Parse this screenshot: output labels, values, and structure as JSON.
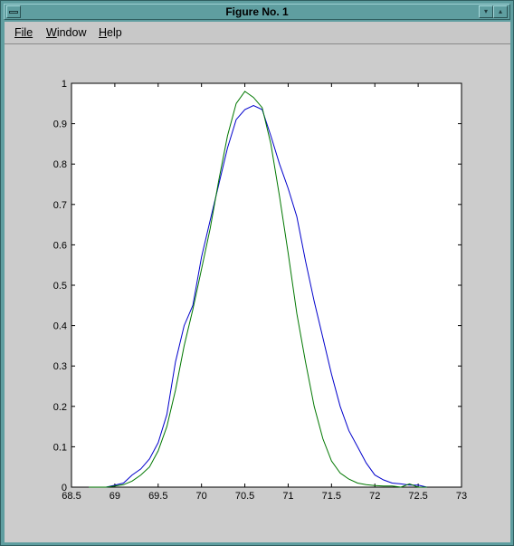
{
  "window": {
    "title": "Figure No. 1",
    "buttons": {
      "system": "system-menu",
      "minimize": "▾",
      "maximize": "▴"
    }
  },
  "menu": {
    "file_label": "File",
    "window_label": "Window",
    "help_label": "Help"
  },
  "colors": {
    "series_blue": "#0000cc",
    "series_green": "#007700",
    "background": "#cccccc",
    "titlebar": "#5f9ea0"
  },
  "chart_data": {
    "type": "line",
    "title": "",
    "xlabel": "",
    "ylabel": "",
    "xlim": [
      68.5,
      73
    ],
    "ylim": [
      0,
      1
    ],
    "x_ticks": [
      68.5,
      69,
      69.5,
      70,
      70.5,
      71,
      71.5,
      72,
      72.5,
      73
    ],
    "y_ticks": [
      0,
      0.1,
      0.2,
      0.3,
      0.4,
      0.5,
      0.6,
      0.7,
      0.8,
      0.9,
      1
    ],
    "x_tick_labels": [
      "68.5",
      "69",
      "69.5",
      "70",
      "70.5",
      "71",
      "71.5",
      "72",
      "72.5",
      "73"
    ],
    "y_tick_labels": [
      "0",
      "0.1",
      "0.2",
      "0.3",
      "0.4",
      "0.5",
      "0.6",
      "0.7",
      "0.8",
      "0.9",
      "1"
    ],
    "grid": false,
    "series": [
      {
        "color": "#0000cc",
        "x": [
          68.7,
          68.9,
          69.0,
          69.1,
          69.2,
          69.3,
          69.4,
          69.5,
          69.6,
          69.7,
          69.8,
          69.9,
          70.0,
          70.1,
          70.2,
          70.3,
          70.4,
          70.5,
          70.6,
          70.7,
          70.8,
          70.9,
          71.0,
          71.1,
          71.2,
          71.3,
          71.4,
          71.5,
          71.6,
          71.7,
          71.8,
          71.9,
          72.0,
          72.1,
          72.2,
          72.3,
          72.4,
          72.5,
          72.6
        ],
        "values": [
          0.0,
          0.0,
          0.005,
          0.01,
          0.03,
          0.045,
          0.07,
          0.11,
          0.18,
          0.31,
          0.4,
          0.45,
          0.57,
          0.66,
          0.75,
          0.84,
          0.91,
          0.935,
          0.945,
          0.935,
          0.87,
          0.8,
          0.74,
          0.67,
          0.56,
          0.46,
          0.37,
          0.28,
          0.2,
          0.14,
          0.1,
          0.06,
          0.03,
          0.018,
          0.01,
          0.008,
          0.005,
          0.005,
          0.0
        ]
      },
      {
        "color": "#007700",
        "x": [
          68.7,
          68.9,
          69.0,
          69.1,
          69.2,
          69.3,
          69.4,
          69.5,
          69.6,
          69.7,
          69.8,
          69.9,
          70.0,
          70.1,
          70.2,
          70.3,
          70.4,
          70.5,
          70.6,
          70.7,
          70.8,
          70.9,
          71.0,
          71.1,
          71.2,
          71.3,
          71.4,
          71.5,
          71.6,
          71.7,
          71.8,
          71.9,
          72.0,
          72.1,
          72.2,
          72.3,
          72.4,
          72.5,
          72.6
        ],
        "values": [
          0.0,
          0.0,
          0.003,
          0.006,
          0.015,
          0.03,
          0.05,
          0.09,
          0.15,
          0.24,
          0.35,
          0.44,
          0.54,
          0.64,
          0.76,
          0.87,
          0.95,
          0.98,
          0.965,
          0.94,
          0.85,
          0.72,
          0.58,
          0.43,
          0.31,
          0.2,
          0.12,
          0.065,
          0.035,
          0.02,
          0.01,
          0.006,
          0.004,
          0.003,
          0.003,
          0.0,
          0.008,
          0.0,
          0.0
        ]
      }
    ]
  }
}
